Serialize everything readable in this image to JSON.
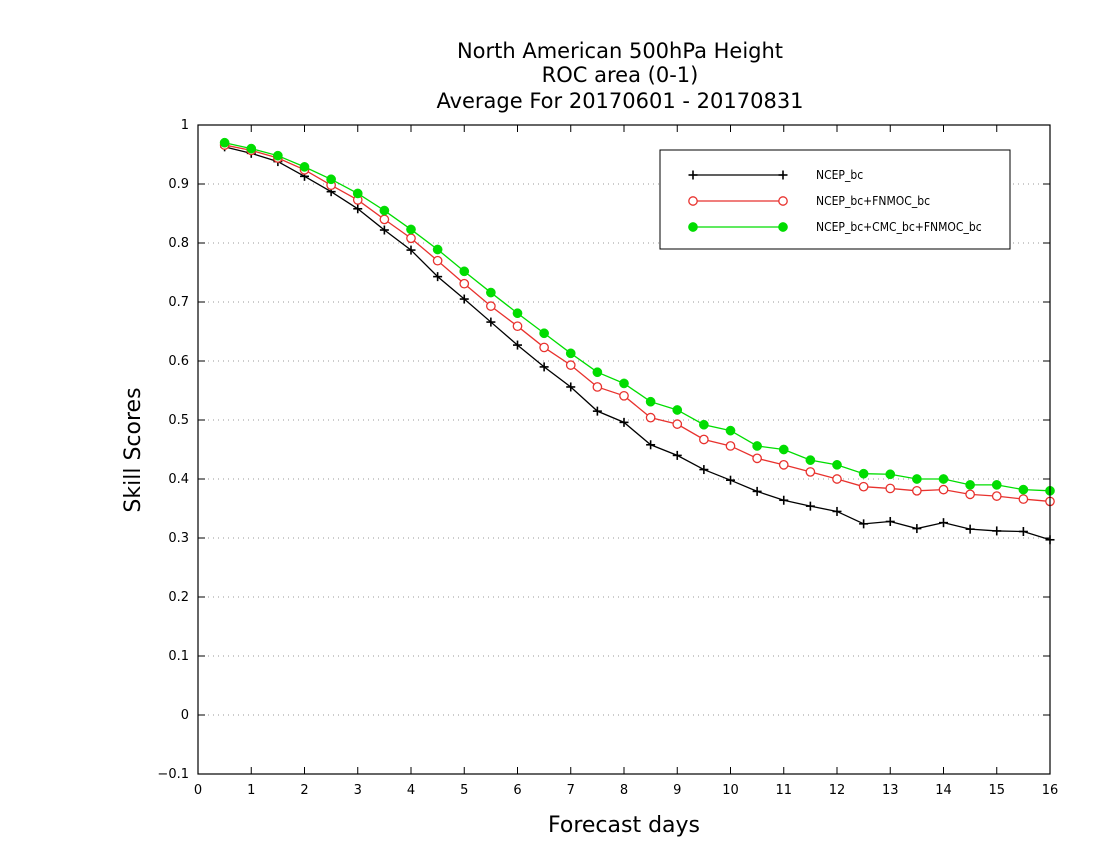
{
  "chart_data": {
    "type": "line",
    "title": [
      "North American 500hPa Height",
      "ROC area (0-1)",
      "Average For 20170601 - 20170831"
    ],
    "xlabel": "Forecast days",
    "ylabel": "Skill Scores",
    "xlim": [
      0,
      16
    ],
    "ylim": [
      -0.1,
      1
    ],
    "xticks": [
      0,
      1,
      2,
      3,
      4,
      5,
      6,
      7,
      8,
      9,
      10,
      11,
      12,
      13,
      14,
      15,
      16
    ],
    "yticks": [
      -0.1,
      0,
      0.1,
      0.2,
      0.3,
      0.4,
      0.5,
      0.6,
      0.7,
      0.8,
      0.9,
      1
    ],
    "ytick_labels": [
      "−0.1",
      "0",
      "0.1",
      "0.2",
      "0.3",
      "0.4",
      "0.5",
      "0.6",
      "0.7",
      "0.8",
      "0.9",
      "1"
    ],
    "grid": "horizontal-dotted",
    "legend_position": "top-right",
    "x": [
      0.5,
      1,
      1.5,
      2,
      2.5,
      3,
      3.5,
      4,
      4.5,
      5,
      5.5,
      6,
      6.5,
      7,
      7.5,
      8,
      8.5,
      9,
      9.5,
      10,
      10.5,
      11,
      11.5,
      12,
      12.5,
      13,
      13.5,
      14,
      14.5,
      15,
      15.5,
      16
    ],
    "series": [
      {
        "name": "NCEP_bc",
        "color": "#000000",
        "marker": "plus",
        "values": [
          0.963,
          0.952,
          0.938,
          0.913,
          0.887,
          0.858,
          0.822,
          0.788,
          0.743,
          0.705,
          0.666,
          0.627,
          0.59,
          0.556,
          0.515,
          0.496,
          0.458,
          0.44,
          0.416,
          0.398,
          0.379,
          0.364,
          0.354,
          0.345,
          0.324,
          0.328,
          0.316,
          0.326,
          0.315,
          0.312,
          0.311,
          0.297
        ]
      },
      {
        "name": "NCEP_bc+FNMOC_bc",
        "color": "#e8322e",
        "marker": "open-circle",
        "values": [
          0.966,
          0.957,
          0.944,
          0.924,
          0.898,
          0.873,
          0.84,
          0.808,
          0.77,
          0.731,
          0.693,
          0.659,
          0.623,
          0.593,
          0.556,
          0.541,
          0.504,
          0.493,
          0.467,
          0.456,
          0.435,
          0.424,
          0.412,
          0.4,
          0.387,
          0.384,
          0.38,
          0.382,
          0.374,
          0.371,
          0.366,
          0.362
        ]
      },
      {
        "name": "NCEP_bc+CMC_bc+FNMOC_bc",
        "color": "#00dd00",
        "marker": "filled-circle",
        "values": [
          0.97,
          0.96,
          0.948,
          0.929,
          0.908,
          0.884,
          0.855,
          0.823,
          0.789,
          0.752,
          0.716,
          0.681,
          0.647,
          0.613,
          0.581,
          0.562,
          0.531,
          0.517,
          0.492,
          0.482,
          0.456,
          0.45,
          0.432,
          0.424,
          0.409,
          0.408,
          0.4,
          0.4,
          0.39,
          0.39,
          0.382,
          0.38
        ]
      }
    ]
  }
}
